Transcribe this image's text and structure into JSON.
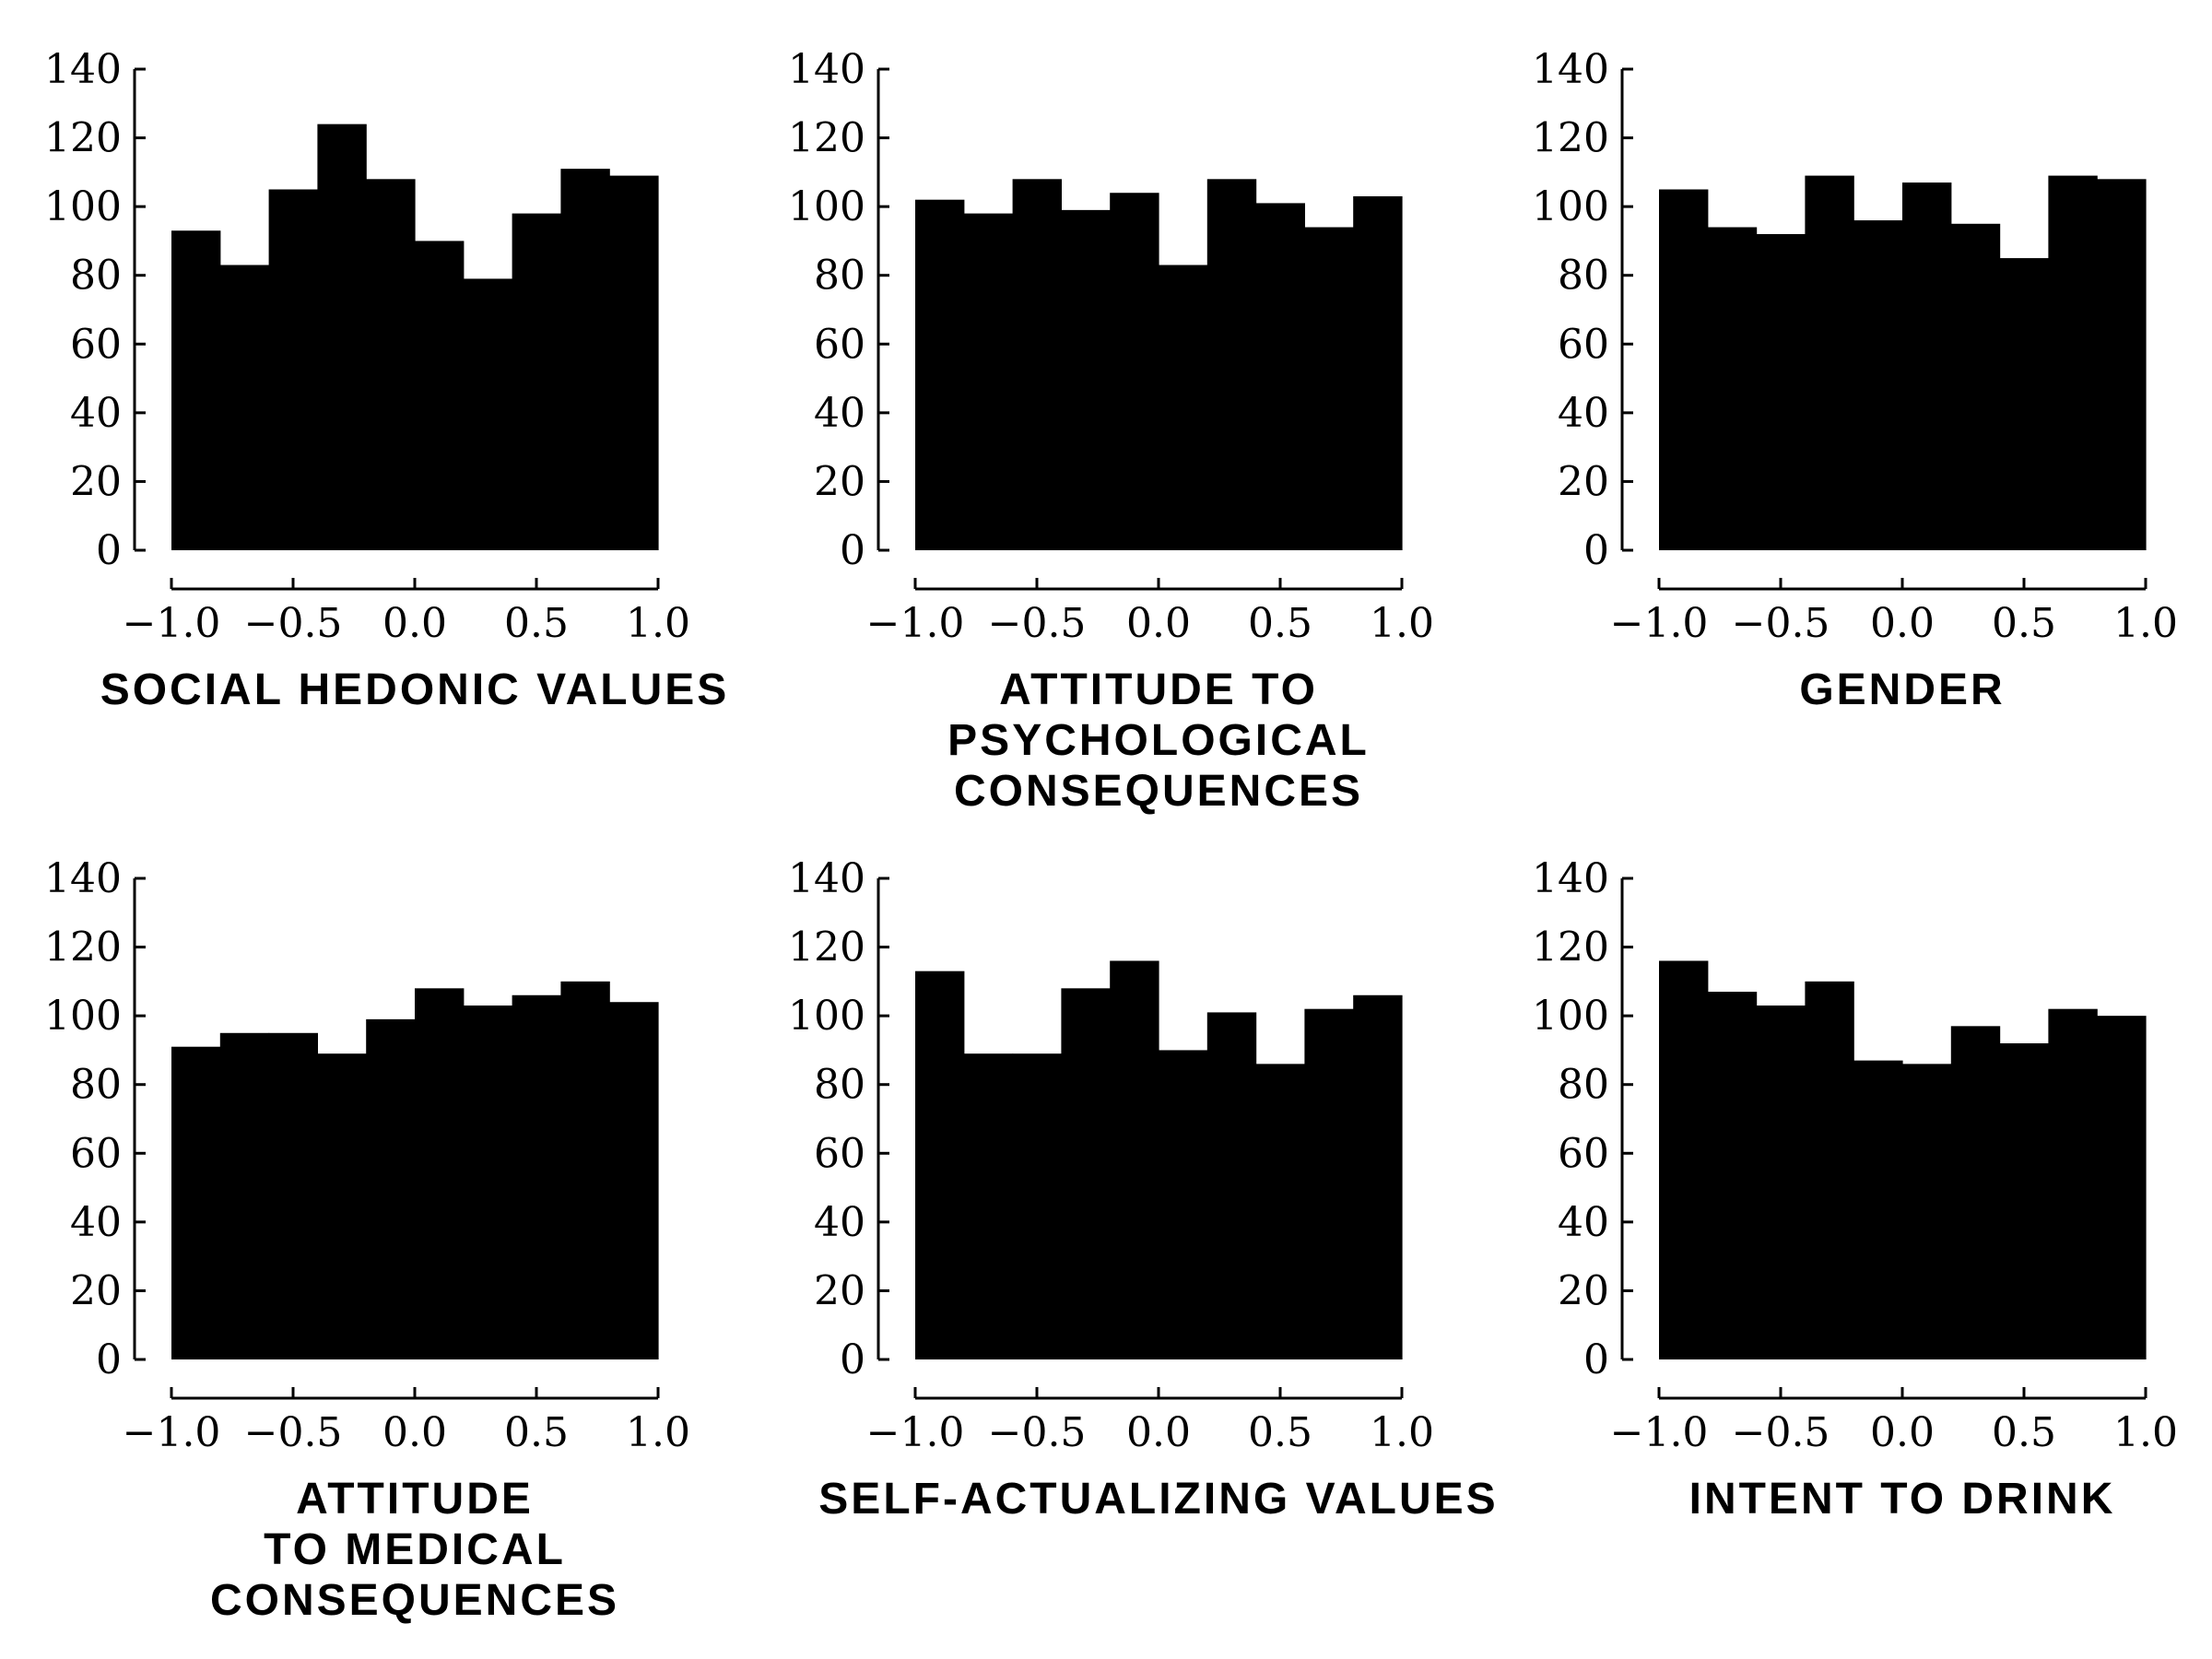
{
  "chart_data": [
    {
      "type": "bar",
      "title_lines": [
        "SOCIAL HEDONIC VALUES"
      ],
      "bin_edges": [
        -1.0,
        -0.8,
        -0.6,
        -0.4,
        -0.2,
        0.0,
        0.2,
        0.4,
        0.6,
        0.8,
        1.0
      ],
      "values": [
        93,
        83,
        105,
        124,
        108,
        90,
        79,
        98,
        111,
        109
      ],
      "xlim": [
        -1.0,
        1.0
      ],
      "ylim": [
        0,
        140
      ],
      "xticks": [
        -1.0,
        -0.5,
        0.0,
        0.5,
        1.0
      ],
      "xtick_labels": [
        "−1.0",
        "−0.5",
        "0.0",
        "0.5",
        "1.0"
      ],
      "yticks": [
        0,
        20,
        40,
        60,
        80,
        100,
        120,
        140
      ],
      "ytick_labels": [
        "0",
        "20",
        "40",
        "60",
        "80",
        "100",
        "120",
        "140"
      ],
      "bar_color": "#000000",
      "grid": false
    },
    {
      "type": "bar",
      "title_lines": [
        "ATTITUDE TO",
        "PSYCHOLOGICAL",
        "CONSEQUENCES"
      ],
      "bin_edges": [
        -1.0,
        -0.8,
        -0.6,
        -0.4,
        -0.2,
        0.0,
        0.2,
        0.4,
        0.6,
        0.8,
        1.0
      ],
      "values": [
        102,
        98,
        108,
        99,
        104,
        83,
        108,
        101,
        94,
        103
      ],
      "xlim": [
        -1.0,
        1.0
      ],
      "ylim": [
        0,
        140
      ],
      "xticks": [
        -1.0,
        -0.5,
        0.0,
        0.5,
        1.0
      ],
      "xtick_labels": [
        "−1.0",
        "−0.5",
        "0.0",
        "0.5",
        "1.0"
      ],
      "yticks": [
        0,
        20,
        40,
        60,
        80,
        100,
        120,
        140
      ],
      "ytick_labels": [
        "0",
        "20",
        "40",
        "60",
        "80",
        "100",
        "120",
        "140"
      ],
      "bar_color": "#000000",
      "grid": false
    },
    {
      "type": "bar",
      "title_lines": [
        "GENDER"
      ],
      "bin_edges": [
        -1.0,
        -0.8,
        -0.6,
        -0.4,
        -0.2,
        0.0,
        0.2,
        0.4,
        0.6,
        0.8,
        1.0
      ],
      "values": [
        105,
        94,
        92,
        109,
        96,
        107,
        95,
        85,
        109,
        108
      ],
      "xlim": [
        -1.0,
        1.0
      ],
      "ylim": [
        0,
        140
      ],
      "xticks": [
        -1.0,
        -0.5,
        0.0,
        0.5,
        1.0
      ],
      "xtick_labels": [
        "−1.0",
        "−0.5",
        "0.0",
        "0.5",
        "1.0"
      ],
      "yticks": [
        0,
        20,
        40,
        60,
        80,
        100,
        120,
        140
      ],
      "ytick_labels": [
        "0",
        "20",
        "40",
        "60",
        "80",
        "100",
        "120",
        "140"
      ],
      "bar_color": "#000000",
      "grid": false
    },
    {
      "type": "bar",
      "title_lines": [
        "ATTITUDE",
        "TO MEDICAL",
        "CONSEQUENCES"
      ],
      "bin_edges": [
        -1.0,
        -0.8,
        -0.6,
        -0.4,
        -0.2,
        0.0,
        0.2,
        0.4,
        0.6,
        0.8,
        1.0
      ],
      "values": [
        91,
        95,
        95,
        89,
        99,
        108,
        103,
        106,
        110,
        104
      ],
      "xlim": [
        -1.0,
        1.0
      ],
      "ylim": [
        0,
        140
      ],
      "xticks": [
        -1.0,
        -0.5,
        0.0,
        0.5,
        1.0
      ],
      "xtick_labels": [
        "−1.0",
        "−0.5",
        "0.0",
        "0.5",
        "1.0"
      ],
      "yticks": [
        0,
        20,
        40,
        60,
        80,
        100,
        120,
        140
      ],
      "ytick_labels": [
        "0",
        "20",
        "40",
        "60",
        "80",
        "100",
        "120",
        "140"
      ],
      "bar_color": "#000000",
      "grid": false
    },
    {
      "type": "bar",
      "title_lines": [
        "SELF-ACTUALIZING VALUES"
      ],
      "bin_edges": [
        -1.0,
        -0.8,
        -0.6,
        -0.4,
        -0.2,
        0.0,
        0.2,
        0.4,
        0.6,
        0.8,
        1.0
      ],
      "values": [
        113,
        89,
        89,
        108,
        116,
        90,
        101,
        86,
        102,
        106
      ],
      "xlim": [
        -1.0,
        1.0
      ],
      "ylim": [
        0,
        140
      ],
      "xticks": [
        -1.0,
        -0.5,
        0.0,
        0.5,
        1.0
      ],
      "xtick_labels": [
        "−1.0",
        "−0.5",
        "0.0",
        "0.5",
        "1.0"
      ],
      "yticks": [
        0,
        20,
        40,
        60,
        80,
        100,
        120,
        140
      ],
      "ytick_labels": [
        "0",
        "20",
        "40",
        "60",
        "80",
        "100",
        "120",
        "140"
      ],
      "bar_color": "#000000",
      "grid": false
    },
    {
      "type": "bar",
      "title_lines": [
        "INTENT TO DRINK"
      ],
      "bin_edges": [
        -1.0,
        -0.8,
        -0.6,
        -0.4,
        -0.2,
        0.0,
        0.2,
        0.4,
        0.6,
        0.8,
        1.0
      ],
      "values": [
        116,
        107,
        103,
        110,
        87,
        86,
        97,
        92,
        102,
        100
      ],
      "xlim": [
        -1.0,
        1.0
      ],
      "ylim": [
        0,
        140
      ],
      "xticks": [
        -1.0,
        -0.5,
        0.0,
        0.5,
        1.0
      ],
      "xtick_labels": [
        "−1.0",
        "−0.5",
        "0.0",
        "0.5",
        "1.0"
      ],
      "yticks": [
        0,
        20,
        40,
        60,
        80,
        100,
        120,
        140
      ],
      "ytick_labels": [
        "0",
        "20",
        "40",
        "60",
        "80",
        "100",
        "120",
        "140"
      ],
      "bar_color": "#000000",
      "grid": false
    }
  ]
}
